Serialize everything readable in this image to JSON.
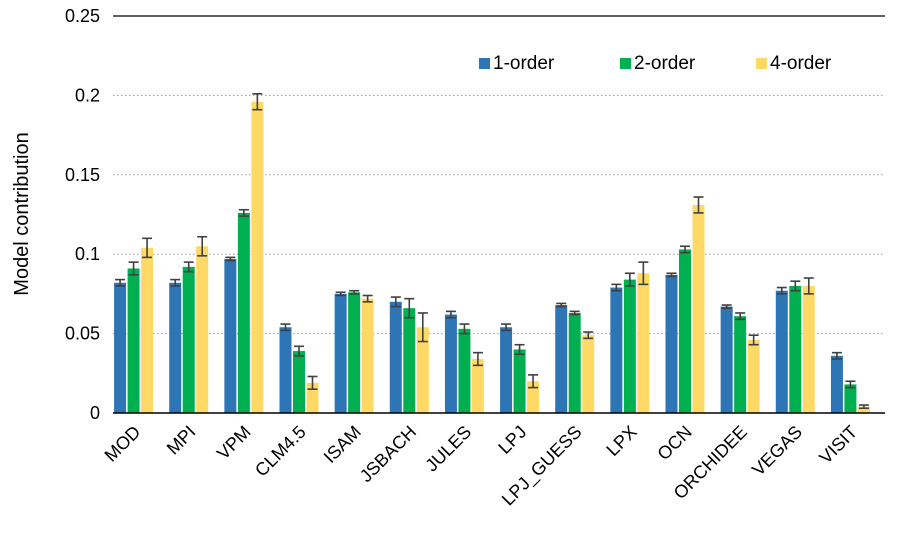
{
  "chart_data": {
    "type": "bar",
    "ylabel": "Model contribution",
    "xlabel": "",
    "ylim": [
      0,
      0.25
    ],
    "yticks": [
      0,
      0.05,
      0.1,
      0.15,
      0.2,
      0.25
    ],
    "ytick_labels": [
      "0",
      "0.05",
      "0.1",
      "0.15",
      "0.2",
      "0.25"
    ],
    "grid": "horizontal dotted",
    "legend_position": "top-right",
    "categories": [
      "MOD",
      "MPI",
      "VPM",
      "CLM4.5",
      "ISAM",
      "JSBACH",
      "JULES",
      "LPJ",
      "LPJ_GUESS",
      "LPX",
      "OCN",
      "ORCHIDEE",
      "VEGAS",
      "VISIT"
    ],
    "series": [
      {
        "name": "1-order",
        "color": "#2E75B6",
        "values": [
          0.082,
          0.082,
          0.097,
          0.054,
          0.075,
          0.07,
          0.062,
          0.054,
          0.068,
          0.079,
          0.087,
          0.067,
          0.077,
          0.036
        ],
        "errors": [
          0.002,
          0.002,
          0.001,
          0.002,
          0.001,
          0.003,
          0.002,
          0.002,
          0.001,
          0.002,
          0.001,
          0.001,
          0.002,
          0.002
        ]
      },
      {
        "name": "2-order",
        "color": "#00B050",
        "values": [
          0.091,
          0.092,
          0.126,
          0.039,
          0.076,
          0.066,
          0.053,
          0.04,
          0.063,
          0.084,
          0.103,
          0.061,
          0.08,
          0.018
        ],
        "errors": [
          0.004,
          0.003,
          0.002,
          0.003,
          0.001,
          0.006,
          0.003,
          0.003,
          0.001,
          0.004,
          0.002,
          0.002,
          0.003,
          0.002
        ]
      },
      {
        "name": "4-order",
        "color": "#FFD966",
        "values": [
          0.104,
          0.105,
          0.196,
          0.019,
          0.072,
          0.054,
          0.034,
          0.02,
          0.049,
          0.088,
          0.131,
          0.046,
          0.08,
          0.004
        ],
        "errors": [
          0.006,
          0.006,
          0.005,
          0.004,
          0.002,
          0.009,
          0.004,
          0.004,
          0.002,
          0.007,
          0.005,
          0.003,
          0.005,
          0.001
        ]
      }
    ]
  }
}
